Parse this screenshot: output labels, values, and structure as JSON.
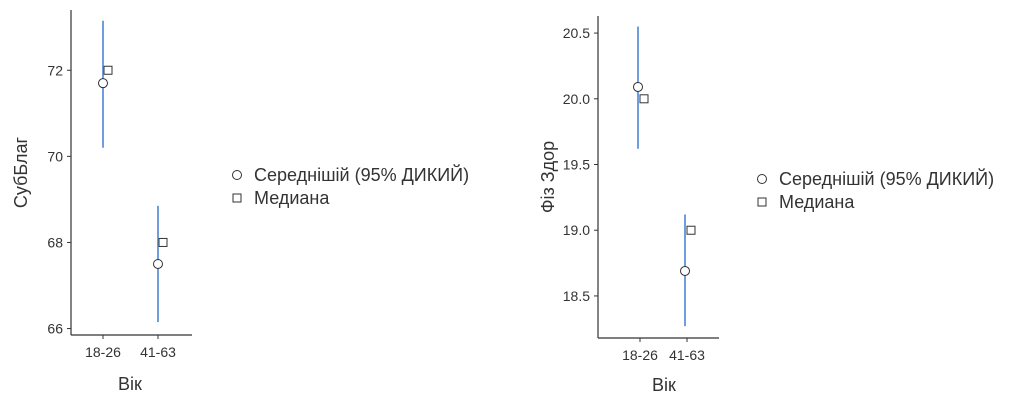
{
  "chart_data": [
    {
      "type": "scatter",
      "categories": [
        "18-26",
        "41-63"
      ],
      "series": [
        {
          "name": "Середнішій (95% ДИКИЙ)",
          "values": [
            71.7,
            67.5
          ],
          "ci_low": [
            70.2,
            66.15
          ],
          "ci_high": [
            73.15,
            68.85
          ]
        },
        {
          "name": "Медиана",
          "values": [
            72,
            68
          ]
        }
      ],
      "xlabel": "Вік",
      "ylabel": "СубБлаг",
      "yticks": [
        66,
        68,
        70,
        72
      ],
      "ylim": [
        65.85,
        73.4
      ],
      "colors": {
        "ci": "#6F9DDE",
        "marker_fill": "#ffffff",
        "marker_stroke": "#333333"
      }
    },
    {
      "type": "scatter",
      "categories": [
        "18-26",
        "41-63"
      ],
      "series": [
        {
          "name": "Середнішій (95% ДИКИЙ)",
          "values": [
            20.09,
            18.69
          ],
          "ci_low": [
            19.62,
            18.27
          ],
          "ci_high": [
            20.55,
            19.12
          ]
        },
        {
          "name": "Медиана",
          "values": [
            20.0,
            19.0
          ]
        }
      ],
      "xlabel": "Вік",
      "ylabel": "Фіз Здор",
      "yticks": [
        18.5,
        19.0,
        19.5,
        20.0,
        20.5
      ],
      "ylim": [
        18.18,
        20.63
      ],
      "colors": {
        "ci": "#6F9DDE",
        "marker_fill": "#ffffff",
        "marker_stroke": "#333333"
      }
    }
  ]
}
